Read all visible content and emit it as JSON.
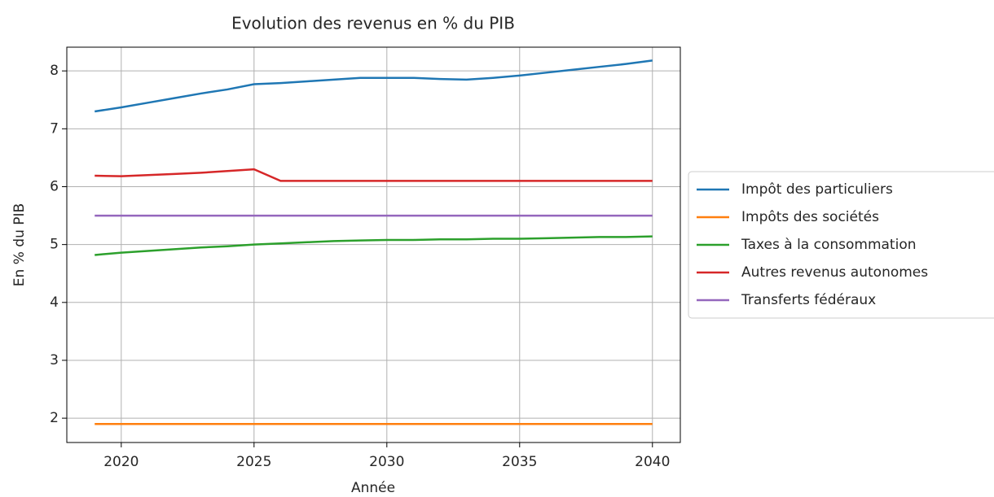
{
  "chart_data": {
    "type": "line",
    "title": "Evolution des revenus en % du PIB",
    "xlabel": "Année",
    "ylabel": "En % du PIB",
    "x": [
      2019,
      2020,
      2021,
      2022,
      2023,
      2024,
      2025,
      2026,
      2027,
      2028,
      2029,
      2030,
      2031,
      2032,
      2033,
      2034,
      2035,
      2036,
      2037,
      2038,
      2039,
      2040
    ],
    "series": [
      {
        "name": "Impôt des particuliers",
        "color": "#1f77b4",
        "values": [
          7.3,
          7.37,
          7.45,
          7.53,
          7.61,
          7.68,
          7.77,
          7.79,
          7.82,
          7.85,
          7.88,
          7.88,
          7.88,
          7.86,
          7.85,
          7.88,
          7.92,
          7.97,
          8.02,
          8.07,
          8.12,
          8.18
        ]
      },
      {
        "name": "Impôts des sociétés",
        "color": "#ff7f0e",
        "values": [
          1.9,
          1.9,
          1.9,
          1.9,
          1.9,
          1.9,
          1.9,
          1.9,
          1.9,
          1.9,
          1.9,
          1.9,
          1.9,
          1.9,
          1.9,
          1.9,
          1.9,
          1.9,
          1.9,
          1.9,
          1.9,
          1.9
        ]
      },
      {
        "name": "Taxes à la consommation",
        "color": "#2ca02c",
        "values": [
          4.82,
          4.86,
          4.89,
          4.92,
          4.95,
          4.97,
          5.0,
          5.02,
          5.04,
          5.06,
          5.07,
          5.08,
          5.08,
          5.09,
          5.09,
          5.1,
          5.1,
          5.11,
          5.12,
          5.13,
          5.13,
          5.14
        ]
      },
      {
        "name": "Autres revenus autonomes",
        "color": "#d62728",
        "values": [
          6.19,
          6.18,
          6.2,
          6.22,
          6.24,
          6.27,
          6.3,
          6.1,
          6.1,
          6.1,
          6.1,
          6.1,
          6.1,
          6.1,
          6.1,
          6.1,
          6.1,
          6.1,
          6.1,
          6.1,
          6.1,
          6.1
        ]
      },
      {
        "name": "Transferts fédéraux",
        "color": "#9467bd",
        "values": [
          5.5,
          5.5,
          5.5,
          5.5,
          5.5,
          5.5,
          5.5,
          5.5,
          5.5,
          5.5,
          5.5,
          5.5,
          5.5,
          5.5,
          5.5,
          5.5,
          5.5,
          5.5,
          5.5,
          5.5,
          5.5,
          5.5
        ]
      }
    ],
    "xlim": [
      2017.95,
      2041.05
    ],
    "xticks": [
      2020,
      2025,
      2030,
      2035,
      2040
    ],
    "ylim": [
      1.58,
      8.41
    ],
    "yticks": [
      2,
      3,
      4,
      5,
      6,
      7,
      8
    ],
    "grid": true,
    "legend": "outside-right"
  }
}
